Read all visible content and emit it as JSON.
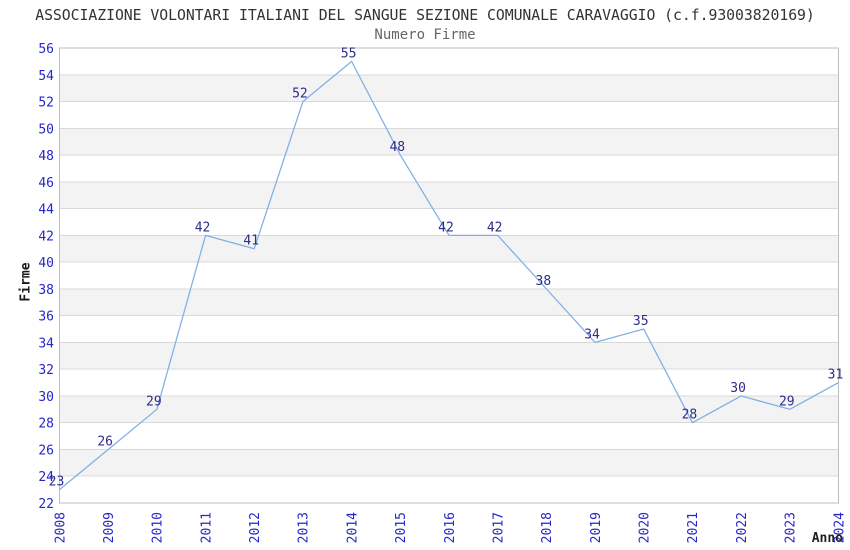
{
  "header": {
    "title": "ASSOCIAZIONE VOLONTARI ITALIANI DEL SANGUE SEZIONE COMUNALE CARAVAGGIO (c.f.93003820169)",
    "subtitle": "Numero Firme"
  },
  "axes": {
    "y_label": "Firme",
    "x_label": "Anno"
  },
  "chart_data": {
    "type": "line",
    "title": "Numero Firme",
    "xlabel": "Anno",
    "ylabel": "Firme",
    "x": [
      2008,
      2009,
      2010,
      2011,
      2012,
      2013,
      2014,
      2015,
      2016,
      2017,
      2018,
      2019,
      2020,
      2021,
      2022,
      2023,
      2024
    ],
    "series": [
      {
        "name": "Numero Firme",
        "values": [
          23,
          26,
          29,
          42,
          41,
          52,
          55,
          48,
          42,
          42,
          38,
          34,
          35,
          28,
          30,
          29,
          31
        ]
      }
    ],
    "ylim": [
      22,
      56
    ],
    "ytick_step": 2,
    "grid": "alternating-horizontal-bands",
    "legend": "none",
    "point_labels": true,
    "colors": {
      "line": "#7fafe5",
      "tick_label": "#2626cc",
      "point_label": "#2d2d8a",
      "band_gray": "#f3f3f3",
      "gridline": "#d9d9d9",
      "plot_border": "#bdbdbd",
      "title": "#333333",
      "subtitle": "#666666",
      "axis_label": "#1a1a1a"
    }
  }
}
